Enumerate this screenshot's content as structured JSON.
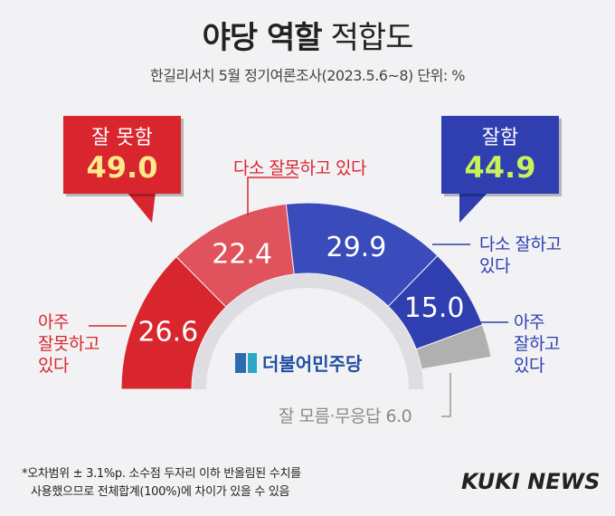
{
  "title": {
    "bold": "야당 역할",
    "normal": "적합도"
  },
  "subtitle": "한길리서치 5월 정기여론조사(2023.5.6~8) 단위: %",
  "summary": {
    "negative": {
      "label": "잘 못함",
      "value": "49.0"
    },
    "positive": {
      "label": "잘함",
      "value": "44.9"
    }
  },
  "labels": {
    "very_bad": [
      "아주",
      "잘못하고",
      "있다"
    ],
    "somewhat_bad": "다소 잘못하고 있다",
    "somewhat_good": [
      "다소 잘하고",
      "있다"
    ],
    "very_good": [
      "아주",
      "잘하고",
      "있다"
    ],
    "unknown": "잘 모름·무응답 6.0"
  },
  "party": "더불어민주당",
  "footnote": [
    "*오차범위 ± 3.1%p. 소수점 두자리 이하 반올림된 수치를",
    "사용했으므로 전체합계(100%)에 차이가 있을 수 있음"
  ],
  "brand": "KUKI NEWS",
  "colors": {
    "very_bad": "#d9262e",
    "somewhat_bad": "#e0525c",
    "somewhat_good": "#3a4bbb",
    "very_good": "#2f3fb0",
    "unknown": "#b0b0b0",
    "inner_ring": "#dddde2"
  },
  "chart_data": {
    "type": "pie",
    "shape": "semicircle-donut",
    "slices": [
      {
        "name": "아주 잘못하고 있다",
        "value": 26.6
      },
      {
        "name": "다소 잘못하고 있다",
        "value": 22.4
      },
      {
        "name": "다소 잘하고 있다",
        "value": 29.9
      },
      {
        "name": "아주 잘하고 있다",
        "value": 15.0
      },
      {
        "name": "잘 모름·무응답",
        "value": 6.0
      }
    ]
  }
}
